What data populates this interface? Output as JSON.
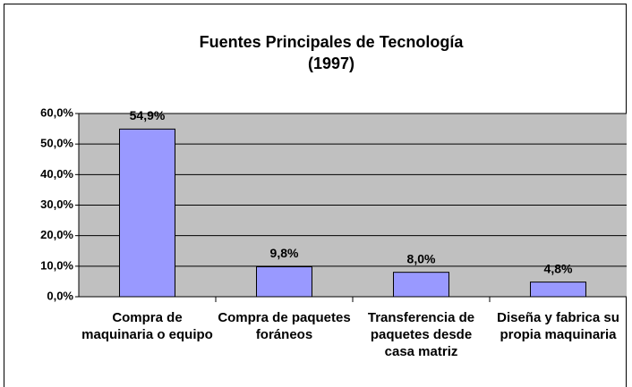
{
  "chart_data": {
    "type": "bar",
    "title": "Fuentes Principales de Tecnología",
    "subtitle": "(1997)",
    "categories": [
      "Compra de maquinaria o equipo",
      "Compra de paquetes foráneos",
      "Transferencia de paquetes desde casa matriz",
      "Diseña y fabrica su propia maquinaria"
    ],
    "values": [
      54.9,
      9.8,
      8.0,
      4.8
    ],
    "value_labels": [
      "54,9%",
      "9,8%",
      "8,0%",
      "4,8%"
    ],
    "color": "#9999ff",
    "ylim": [
      0,
      60
    ],
    "yticks": [
      {
        "value": 0,
        "label": "0,0%"
      },
      {
        "value": 10,
        "label": "10,0%"
      },
      {
        "value": 20,
        "label": "20,0%"
      },
      {
        "value": 30,
        "label": "30,0%"
      },
      {
        "value": 40,
        "label": "40,0%"
      },
      {
        "value": 50,
        "label": "50,0%"
      },
      {
        "value": 60,
        "label": "60,0%"
      }
    ],
    "grid": true
  }
}
